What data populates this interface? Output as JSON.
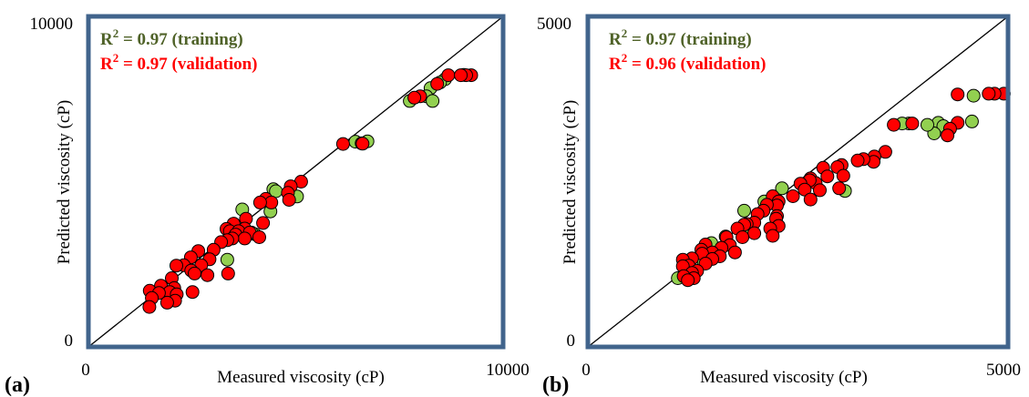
{
  "colors": {
    "training": "#92d050",
    "validation": "#ff0000",
    "frame": "#41648c",
    "training_text": "#4f6228",
    "validation_text": "#ff0000"
  },
  "chart_data": [
    {
      "type": "scatter",
      "panel_label": "(a)",
      "xlabel": "Measured viscosity (cP)",
      "ylabel": "Predicted viscosity (cP)",
      "xlim": [
        0,
        10000
      ],
      "ylim": [
        0,
        10000
      ],
      "x_tick_labels": [
        "0",
        "10000"
      ],
      "y_tick_labels": [
        "0",
        "10000"
      ],
      "reference_line": "y = x",
      "annotations": {
        "training_prefix": "R",
        "training_sup": "2",
        "training_value": " = 0.97 (training)",
        "validation_prefix": "R",
        "validation_sup": "2",
        "validation_value": " = 0.97 (validation)"
      },
      "series": [
        {
          "role": "training",
          "points": [
            [
              9050,
              8230
            ],
            [
              8600,
              8100
            ],
            [
              8480,
              8000
            ],
            [
              8250,
              7830
            ],
            [
              8150,
              7580
            ],
            [
              7750,
              7440
            ],
            [
              8300,
              7440
            ],
            [
              6730,
              6220
            ],
            [
              6440,
              6210
            ],
            [
              4460,
              4770
            ],
            [
              4520,
              4710
            ],
            [
              3710,
              4160
            ],
            [
              4390,
              4100
            ],
            [
              4010,
              3410
            ],
            [
              3930,
              3460
            ],
            [
              3350,
              2640
            ],
            [
              5030,
              4550
            ]
          ]
        },
        {
          "role": "validation",
          "points": [
            [
              9230,
              8220
            ],
            [
              9110,
              8220
            ],
            [
              8680,
              8220
            ],
            [
              8980,
              8220
            ],
            [
              8410,
              7960
            ],
            [
              8000,
              7580
            ],
            [
              7860,
              7540
            ],
            [
              6590,
              6160
            ],
            [
              6610,
              6150
            ],
            [
              6140,
              6140
            ],
            [
              5130,
              5000
            ],
            [
              4880,
              4860
            ],
            [
              4810,
              4660
            ],
            [
              4840,
              4450
            ],
            [
              4280,
              4480
            ],
            [
              4410,
              4370
            ],
            [
              4140,
              4370
            ],
            [
              3800,
              3880
            ],
            [
              4210,
              3750
            ],
            [
              3500,
              3730
            ],
            [
              3770,
              3580
            ],
            [
              3330,
              3570
            ],
            [
              3410,
              3500
            ],
            [
              3620,
              3500
            ],
            [
              3890,
              3460
            ],
            [
              3550,
              3400
            ],
            [
              4120,
              3320
            ],
            [
              3770,
              3280
            ],
            [
              3470,
              3280
            ],
            [
              3350,
              3230
            ],
            [
              3200,
              3170
            ],
            [
              3020,
              2940
            ],
            [
              2650,
              2900
            ],
            [
              2470,
              2710
            ],
            [
              2920,
              2650
            ],
            [
              2720,
              2470
            ],
            [
              2300,
              2470
            ],
            [
              2120,
              2460
            ],
            [
              2480,
              2310
            ],
            [
              2560,
              2220
            ],
            [
              3370,
              2220
            ],
            [
              2870,
              2170
            ],
            [
              2010,
              2080
            ],
            [
              1750,
              1850
            ],
            [
              2070,
              1780
            ],
            [
              1480,
              1700
            ],
            [
              2510,
              1660
            ],
            [
              1960,
              1660
            ],
            [
              1700,
              1630
            ],
            [
              2130,
              1590
            ],
            [
              1530,
              1480
            ],
            [
              2090,
              1400
            ],
            [
              1900,
              1340
            ],
            [
              1470,
              1210
            ]
          ]
        }
      ]
    },
    {
      "type": "scatter",
      "panel_label": "(b)",
      "xlabel": "Measured viscosity (cP)",
      "ylabel": "Predicted viscosity (cP)",
      "xlim": [
        0,
        5000
      ],
      "ylim": [
        0,
        5000
      ],
      "x_tick_labels": [
        "0",
        "5000"
      ],
      "y_tick_labels": [
        "0",
        "5000"
      ],
      "reference_line": "y = x",
      "annotations": {
        "training_prefix": "R",
        "training_sup": "2",
        "training_value": " = 0.97 (training)",
        "validation_prefix": "R",
        "validation_sup": "2",
        "validation_value": " = 0.96 (validation)"
      },
      "series": [
        {
          "role": "training",
          "points": [
            [
              4590,
              3800
            ],
            [
              4570,
              3410
            ],
            [
              4170,
              3390
            ],
            [
              4230,
              3340
            ],
            [
              4120,
              3230
            ],
            [
              4040,
              3360
            ],
            [
              3820,
              3380
            ],
            [
              3740,
              3380
            ],
            [
              2310,
              2400
            ],
            [
              2100,
              2200
            ],
            [
              3060,
              2360
            ],
            [
              1860,
              2060
            ],
            [
              1860,
              1800
            ],
            [
              1640,
              1670
            ],
            [
              1470,
              1570
            ],
            [
              1070,
              1040
            ],
            [
              1380,
              1270
            ]
          ]
        },
        {
          "role": "validation",
          "points": [
            [
              4950,
              3830
            ],
            [
              4840,
              3830
            ],
            [
              4770,
              3830
            ],
            [
              4400,
              3820
            ],
            [
              3860,
              3380
            ],
            [
              3640,
              3360
            ],
            [
              4400,
              3390
            ],
            [
              4310,
              3300
            ],
            [
              4280,
              3200
            ],
            [
              3540,
              2950
            ],
            [
              3410,
              2880
            ],
            [
              3400,
              2800
            ],
            [
              3280,
              2840
            ],
            [
              3210,
              2820
            ],
            [
              3020,
              2750
            ],
            [
              2970,
              2720
            ],
            [
              2800,
              2710
            ],
            [
              3040,
              2590
            ],
            [
              2850,
              2580
            ],
            [
              2650,
              2550
            ],
            [
              2710,
              2480
            ],
            [
              2640,
              2520
            ],
            [
              2530,
              2470
            ],
            [
              2990,
              2400
            ],
            [
              2760,
              2370
            ],
            [
              2580,
              2380
            ],
            [
              2440,
              2280
            ],
            [
              2200,
              2280
            ],
            [
              2650,
              2230
            ],
            [
              2270,
              2200
            ],
            [
              2250,
              2140
            ],
            [
              2130,
              2150
            ],
            [
              2090,
              2060
            ],
            [
              2020,
              2010
            ],
            [
              2250,
              1980
            ],
            [
              2240,
              1940
            ],
            [
              2270,
              1830
            ],
            [
              1980,
              1880
            ],
            [
              1890,
              1860
            ],
            [
              1860,
              1850
            ],
            [
              1780,
              1790
            ],
            [
              2170,
              1790
            ],
            [
              1980,
              1720
            ],
            [
              2200,
              1680
            ],
            [
              1650,
              1660
            ],
            [
              1840,
              1660
            ],
            [
              1400,
              1550
            ],
            [
              1690,
              1540
            ],
            [
              1590,
              1500
            ],
            [
              1350,
              1470
            ],
            [
              1750,
              1430
            ],
            [
              1480,
              1430
            ],
            [
              1360,
              1410
            ],
            [
              1570,
              1370
            ],
            [
              1480,
              1330
            ],
            [
              1240,
              1340
            ],
            [
              1130,
              1320
            ],
            [
              1400,
              1260
            ],
            [
              1200,
              1230
            ],
            [
              1130,
              1220
            ],
            [
              1300,
              1150
            ],
            [
              1240,
              1120
            ],
            [
              1140,
              1070
            ],
            [
              1260,
              1040
            ],
            [
              1190,
              1010
            ]
          ]
        }
      ]
    }
  ]
}
